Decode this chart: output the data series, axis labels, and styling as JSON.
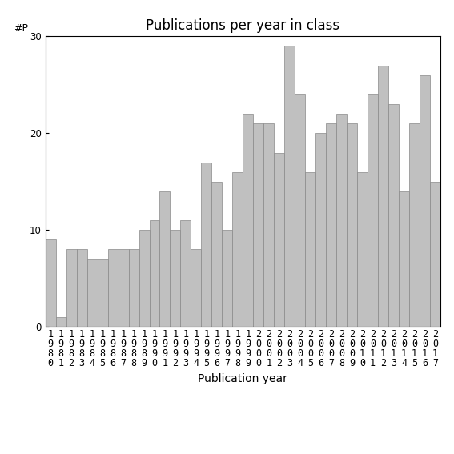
{
  "title": "Publications per year in class",
  "xlabel": "Publication year",
  "ylabel": "#P",
  "years": [
    "1980",
    "1981",
    "1982",
    "1983",
    "1984",
    "1985",
    "1986",
    "1987",
    "1988",
    "1989",
    "1990",
    "1991",
    "1992",
    "1993",
    "1994",
    "1995",
    "1996",
    "1997",
    "1998",
    "1999",
    "2000",
    "2001",
    "2002",
    "2003",
    "2004",
    "2005",
    "2006",
    "2007",
    "2008",
    "2009",
    "2010",
    "2011",
    "2012",
    "2013",
    "2014",
    "2015",
    "2016",
    "2017"
  ],
  "values": [
    9,
    1,
    8,
    8,
    7,
    7,
    8,
    8,
    8,
    10,
    11,
    14,
    10,
    11,
    8,
    17,
    15,
    10,
    16,
    22,
    21,
    21,
    18,
    29,
    24,
    16,
    20,
    21,
    22,
    21,
    16,
    24,
    27,
    23,
    14,
    21,
    26,
    15
  ],
  "bar_color": "#c0c0c0",
  "bar_edge_color": "#888888",
  "ylim": [
    0,
    30
  ],
  "yticks": [
    0,
    10,
    20,
    30
  ],
  "title_fontsize": 12,
  "label_fontsize": 10,
  "tick_fontsize": 8.5,
  "ylabel_fontsize": 9
}
